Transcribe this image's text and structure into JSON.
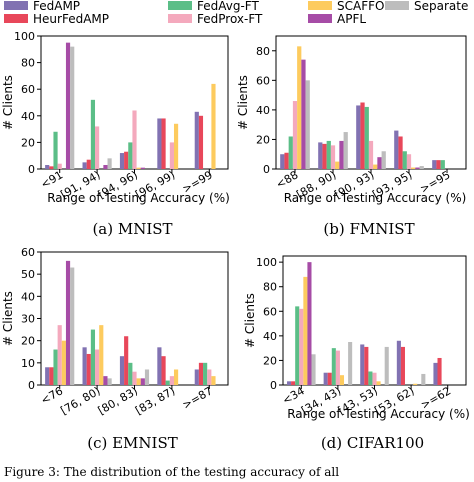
{
  "legend": {
    "placement": "top",
    "entries": [
      {
        "name": "FedAMP",
        "color": "#8172B2"
      },
      {
        "name": "HeurFedAMP",
        "color": "#E8475A"
      },
      {
        "name": "FedAvg-FT",
        "color": "#5BBE87"
      },
      {
        "name": "FedProx-FT",
        "color": "#F4A9BD"
      },
      {
        "name": "SCAFFOLD",
        "color": "#FDCB5E"
      },
      {
        "name": "APFL",
        "color": "#A64CA6"
      },
      {
        "name": "Separate",
        "color": "#BDBDBD"
      }
    ]
  },
  "chart_data": [
    {
      "type": "bar",
      "caption": "(a) MNIST",
      "xlabel": "Range of Testing Accuracy (%)",
      "ylabel": "# Clients",
      "ylim": [
        0,
        100
      ],
      "yticks": [
        0,
        20,
        40,
        60,
        80,
        100
      ],
      "categories": [
        "<91",
        "[91, 94)",
        "[94, 96)",
        "[96, 99)",
        ">=99"
      ],
      "series": [
        {
          "name": "FedAMP",
          "values": [
            3,
            5,
            12,
            38,
            43
          ]
        },
        {
          "name": "HeurFedAMP",
          "values": [
            2,
            7,
            13,
            38,
            40
          ]
        },
        {
          "name": "FedAvg-FT",
          "values": [
            28,
            52,
            20,
            0,
            0
          ]
        },
        {
          "name": "FedProx-FT",
          "values": [
            4,
            32,
            44,
            20,
            0
          ]
        },
        {
          "name": "SCAFFOLD",
          "values": [
            0,
            0,
            1,
            34,
            64
          ]
        },
        {
          "name": "APFL",
          "values": [
            95,
            3,
            1,
            0,
            0
          ]
        },
        {
          "name": "Separate",
          "values": [
            92,
            8,
            0,
            0,
            0
          ]
        }
      ]
    },
    {
      "type": "bar",
      "caption": "(b) FMNIST",
      "xlabel": "Range of Testing Accuracy (%)",
      "ylabel": "# Clients",
      "ylim": [
        0,
        90
      ],
      "yticks": [
        0,
        20,
        40,
        60,
        80
      ],
      "categories": [
        "<88",
        "[88, 90)",
        "[90, 93)",
        "[93, 95)",
        ">=95"
      ],
      "series": [
        {
          "name": "FedAMP",
          "values": [
            10,
            18,
            43,
            26,
            6
          ]
        },
        {
          "name": "HeurFedAMP",
          "values": [
            11,
            17,
            45,
            22,
            6
          ]
        },
        {
          "name": "FedAvg-FT",
          "values": [
            22,
            19,
            42,
            12,
            6
          ]
        },
        {
          "name": "FedProx-FT",
          "values": [
            46,
            16,
            19,
            10,
            0
          ]
        },
        {
          "name": "SCAFFOLD",
          "values": [
            83,
            5,
            3,
            1,
            0
          ]
        },
        {
          "name": "APFL",
          "values": [
            74,
            19,
            8,
            1,
            0
          ]
        },
        {
          "name": "Separate",
          "values": [
            60,
            25,
            12,
            2,
            0
          ]
        }
      ]
    },
    {
      "type": "bar",
      "caption": "(c) EMNIST",
      "xlabel": "",
      "ylabel": "# Clients",
      "ylim": [
        0,
        60
      ],
      "yticks": [
        0,
        10,
        20,
        30,
        40,
        50,
        60
      ],
      "categories": [
        "<76",
        "[76, 80)",
        "[80, 83)",
        "[83, 87)",
        ">=87"
      ],
      "series": [
        {
          "name": "FedAMP",
          "values": [
            8,
            17,
            13,
            17,
            7
          ]
        },
        {
          "name": "HeurFedAMP",
          "values": [
            8,
            14,
            22,
            13,
            10
          ]
        },
        {
          "name": "FedAvg-FT",
          "values": [
            16,
            25,
            10,
            2,
            10
          ]
        },
        {
          "name": "FedProx-FT",
          "values": [
            27,
            16,
            6,
            4,
            7
          ]
        },
        {
          "name": "SCAFFOLD",
          "values": [
            20,
            27,
            3,
            7,
            4
          ]
        },
        {
          "name": "APFL",
          "values": [
            56,
            4,
            3,
            0,
            0
          ]
        },
        {
          "name": "Separate",
          "values": [
            53,
            3,
            7,
            0,
            0
          ]
        }
      ]
    },
    {
      "type": "bar",
      "caption": "(d) CIFAR100",
      "xlabel": "Range of Testing Accuracy (%)",
      "ylabel": "# Clients",
      "ylim": [
        0,
        105
      ],
      "yticks": [
        0,
        20,
        40,
        60,
        80,
        100
      ],
      "categories": [
        "<34",
        "[34, 43)",
        "[43, 53)",
        "[53, 62)",
        ">=62"
      ],
      "series": [
        {
          "name": "FedAMP",
          "values": [
            3,
            10,
            33,
            36,
            18
          ]
        },
        {
          "name": "HeurFedAMP",
          "values": [
            3,
            10,
            31,
            31,
            22
          ]
        },
        {
          "name": "FedAvg-FT",
          "values": [
            64,
            30,
            11,
            0,
            0
          ]
        },
        {
          "name": "FedProx-FT",
          "values": [
            62,
            28,
            10,
            0,
            0
          ]
        },
        {
          "name": "SCAFFOLD",
          "values": [
            88,
            8,
            3,
            1,
            0
          ]
        },
        {
          "name": "APFL",
          "values": [
            100,
            0,
            0,
            0,
            0
          ]
        },
        {
          "name": "Separate",
          "values": [
            25,
            35,
            31,
            9,
            0
          ]
        }
      ]
    }
  ],
  "footer_text": "Figure 3: The distribution of the testing accuracy of all"
}
